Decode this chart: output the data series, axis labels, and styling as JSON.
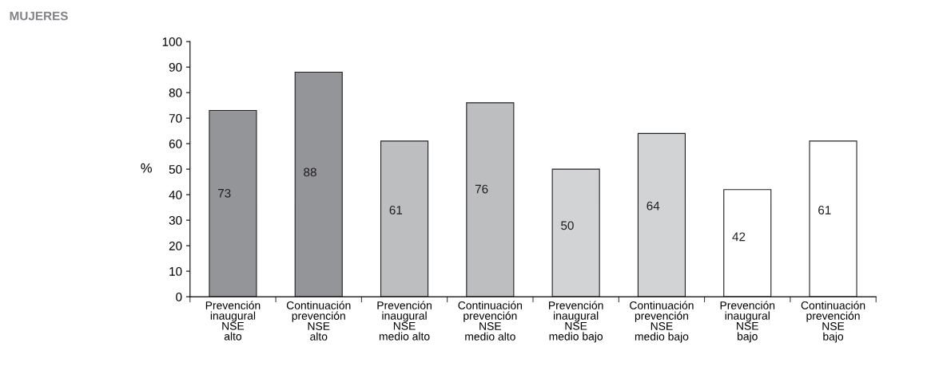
{
  "chart_data": {
    "type": "bar",
    "title": "MUJERES",
    "ylabel": "%",
    "categories": [
      "Prevención\ninaugural\nNSE\nalto",
      "Continuación\nprevención\nNSE\nalto",
      "Prevención\ninaugural\nNSE\nmedio alto",
      "Continuación\nprevención\nNSE\nmedio alto",
      "Prevención\ninaugural\nNSE\nmedio bajo",
      "Continuación\nprevención\nNSE\nmedio bajo",
      "Prevención\ninaugural\nNSE\nbajo",
      "Continuación\nprevención\nNSE\nbajo"
    ],
    "values": [
      73,
      88,
      61,
      76,
      50,
      64,
      42,
      61
    ],
    "colors": [
      "#939598",
      "#939598",
      "#bcbec0",
      "#bcbec0",
      "#d1d3d4",
      "#d1d3d4",
      "#ffffff",
      "#ffffff"
    ],
    "ylim": [
      0,
      100
    ],
    "yticks": [
      0,
      10,
      20,
      30,
      40,
      50,
      60,
      70,
      80,
      90,
      100
    ],
    "data_labels": true,
    "grid": false,
    "legend": false
  }
}
